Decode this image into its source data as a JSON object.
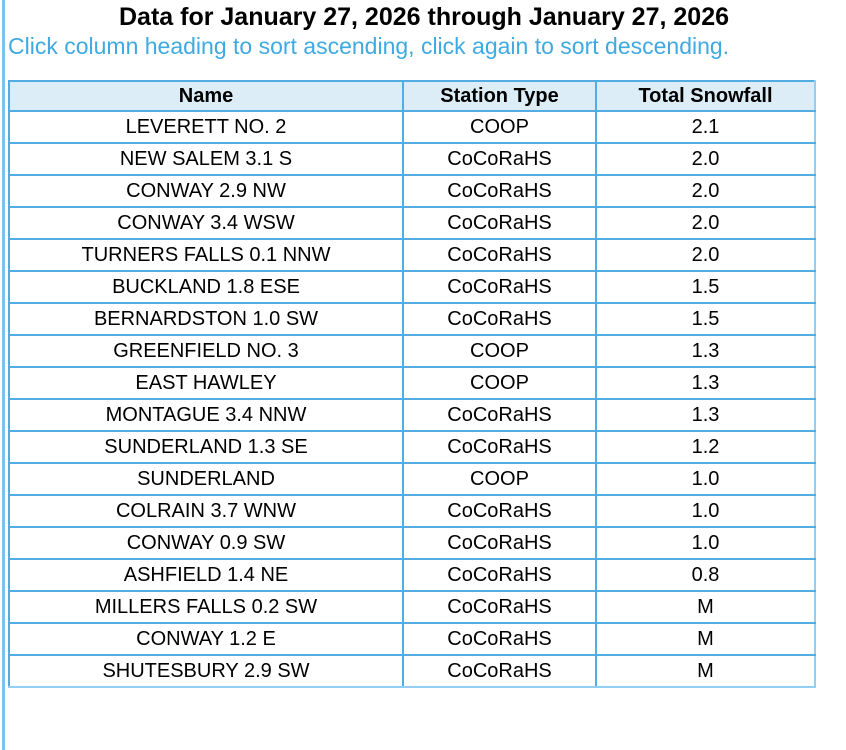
{
  "header": {
    "title": "Data for January 27, 2026 through January 27, 2026",
    "sort_instructions": "Click column heading to sort ascending, click again to sort descending."
  },
  "table": {
    "columns": [
      {
        "key": "name",
        "label": "Name"
      },
      {
        "key": "station_type",
        "label": "Station Type"
      },
      {
        "key": "total_snowfall",
        "label": "Total Snowfall"
      }
    ],
    "rows": [
      {
        "name": "LEVERETT NO. 2",
        "station_type": "COOP",
        "total_snowfall": "2.1"
      },
      {
        "name": "NEW SALEM 3.1 S",
        "station_type": "CoCoRaHS",
        "total_snowfall": "2.0"
      },
      {
        "name": "CONWAY 2.9 NW",
        "station_type": "CoCoRaHS",
        "total_snowfall": "2.0"
      },
      {
        "name": "CONWAY 3.4 WSW",
        "station_type": "CoCoRaHS",
        "total_snowfall": "2.0"
      },
      {
        "name": "TURNERS FALLS 0.1 NNW",
        "station_type": "CoCoRaHS",
        "total_snowfall": "2.0"
      },
      {
        "name": "BUCKLAND 1.8 ESE",
        "station_type": "CoCoRaHS",
        "total_snowfall": "1.5"
      },
      {
        "name": "BERNARDSTON 1.0 SW",
        "station_type": "CoCoRaHS",
        "total_snowfall": "1.5"
      },
      {
        "name": "GREENFIELD NO. 3",
        "station_type": "COOP",
        "total_snowfall": "1.3"
      },
      {
        "name": "EAST HAWLEY",
        "station_type": "COOP",
        "total_snowfall": "1.3"
      },
      {
        "name": "MONTAGUE 3.4 NNW",
        "station_type": "CoCoRaHS",
        "total_snowfall": "1.3"
      },
      {
        "name": "SUNDERLAND 1.3 SE",
        "station_type": "CoCoRaHS",
        "total_snowfall": "1.2"
      },
      {
        "name": "SUNDERLAND",
        "station_type": "COOP",
        "total_snowfall": "1.0"
      },
      {
        "name": "COLRAIN 3.7 WNW",
        "station_type": "CoCoRaHS",
        "total_snowfall": "1.0"
      },
      {
        "name": "CONWAY 0.9 SW",
        "station_type": "CoCoRaHS",
        "total_snowfall": "1.0"
      },
      {
        "name": "ASHFIELD 1.4 NE",
        "station_type": "CoCoRaHS",
        "total_snowfall": "0.8"
      },
      {
        "name": "MILLERS FALLS 0.2 SW",
        "station_type": "CoCoRaHS",
        "total_snowfall": "M"
      },
      {
        "name": "CONWAY 1.2 E",
        "station_type": "CoCoRaHS",
        "total_snowfall": "M"
      },
      {
        "name": "SHUTESBURY 2.9 SW",
        "station_type": "CoCoRaHS",
        "total_snowfall": "M"
      }
    ]
  },
  "colors": {
    "title_text": "#000000",
    "subtitle_text": "#3fa9e1",
    "cell_border": "#54ade2",
    "table_outer_border_light": "#92cff2",
    "header_row_bg": "#ddedf8",
    "page_left_border": "#7cc3ec",
    "cell_text": "#000000"
  }
}
